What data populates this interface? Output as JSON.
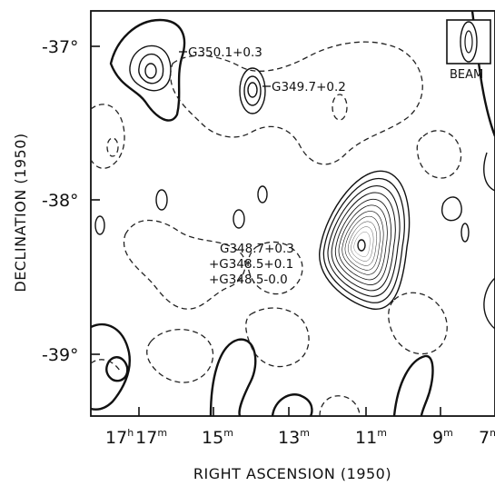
{
  "chart_data": {
    "type": "contour",
    "xlabel": "RIGHT ASCENSION (1950)",
    "ylabel": "DECLINATION (1950)",
    "x_ticks": [
      {
        "h": "17",
        "m": "17",
        "ra_min": 17
      },
      {
        "m": "15",
        "ra_min": 15
      },
      {
        "m": "13",
        "ra_min": 13
      },
      {
        "m": "11",
        "ra_min": 11
      },
      {
        "m": "9",
        "ra_min": 9
      },
      {
        "m": "7",
        "ra_min": 7
      }
    ],
    "x_unit_marks": {
      "hour": "h",
      "minute": "m"
    },
    "y_ticks": [
      {
        "label": "-37°",
        "dec": -37
      },
      {
        "label": "-38°",
        "dec": -38
      },
      {
        "label": "-39°",
        "dec": -39
      }
    ],
    "x_range_ra_min": [
      19,
      7
    ],
    "y_range_dec": [
      -36.8,
      -39.45
    ],
    "beam_label": "BEAM",
    "sources": [
      {
        "label": "G350.1+0.3",
        "ra_min": 17.2,
        "dec": -37.2
      },
      {
        "label": "G349.7+0.2",
        "ra_min": 14.9,
        "dec": -37.3
      },
      {
        "label": "G348.7+0.3",
        "ra_min": 11.2,
        "dec": -38.32
      },
      {
        "label": "+G348.5+0.1",
        "ra_min": 11.2,
        "dec": -38.32
      },
      {
        "label": "+G348.5-0.0",
        "ra_min": 11.2,
        "dec": -38.32
      }
    ],
    "contours": {
      "positive": "solid",
      "negative": "dashed",
      "peak_levels_main": 12
    }
  }
}
